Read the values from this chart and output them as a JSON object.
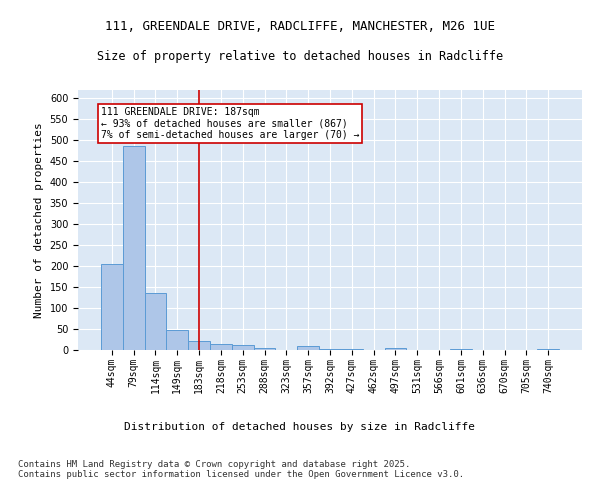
{
  "title_line1": "111, GREENDALE DRIVE, RADCLIFFE, MANCHESTER, M26 1UE",
  "title_line2": "Size of property relative to detached houses in Radcliffe",
  "xlabel": "Distribution of detached houses by size in Radcliffe",
  "ylabel": "Number of detached properties",
  "footnote": "Contains HM Land Registry data © Crown copyright and database right 2025.\nContains public sector information licensed under the Open Government Licence v3.0.",
  "categories": [
    "44sqm",
    "79sqm",
    "114sqm",
    "149sqm",
    "183sqm",
    "218sqm",
    "253sqm",
    "288sqm",
    "323sqm",
    "357sqm",
    "392sqm",
    "427sqm",
    "462sqm",
    "497sqm",
    "531sqm",
    "566sqm",
    "601sqm",
    "636sqm",
    "670sqm",
    "705sqm",
    "740sqm"
  ],
  "values": [
    204,
    487,
    135,
    47,
    22,
    15,
    12,
    5,
    0,
    9,
    2,
    2,
    0,
    5,
    0,
    0,
    3,
    1,
    0,
    0,
    3
  ],
  "bar_color": "#aec6e8",
  "bar_edge_color": "#5b9bd5",
  "vline_x_index": 4,
  "vline_color": "#cc0000",
  "annotation_text": "111 GREENDALE DRIVE: 187sqm\n← 93% of detached houses are smaller (867)\n7% of semi-detached houses are larger (70) →",
  "annotation_box_color": "#cc0000",
  "ylim": [
    0,
    620
  ],
  "yticks": [
    0,
    50,
    100,
    150,
    200,
    250,
    300,
    350,
    400,
    450,
    500,
    550,
    600
  ],
  "background_color": "#dce8f5",
  "grid_color": "#ffffff",
  "title1_fontsize": 9,
  "title2_fontsize": 8.5,
  "axis_label_fontsize": 8,
  "tick_fontsize": 7,
  "annotation_fontsize": 7,
  "footnote_fontsize": 6.5
}
